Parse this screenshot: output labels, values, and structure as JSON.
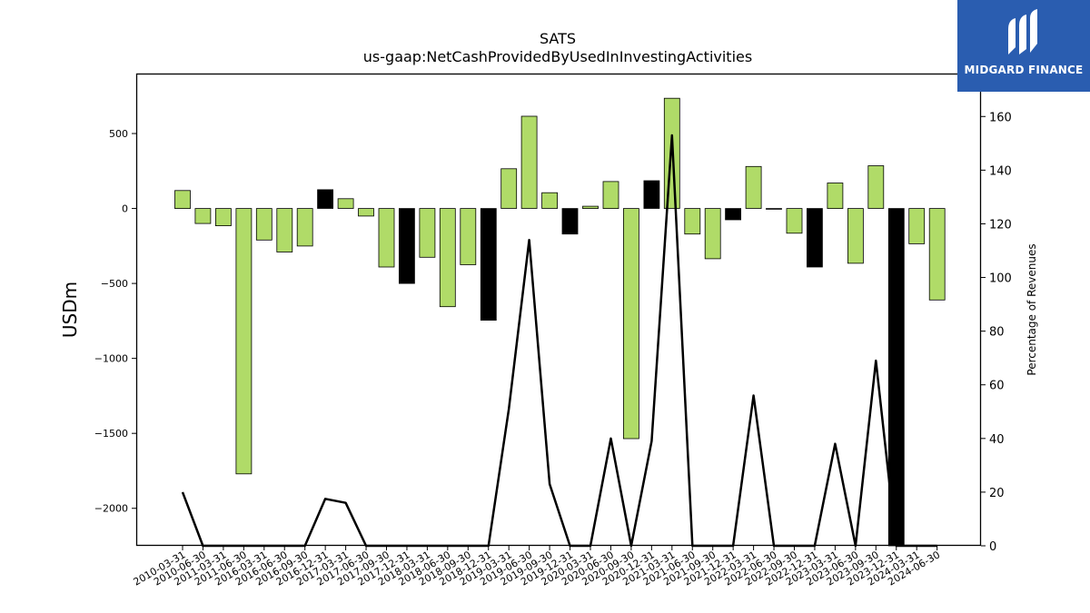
{
  "chart_data": {
    "type": "bar",
    "title": "SATS",
    "subtitle": "us-gaap:NetCashProvidedByUsedInInvestingActivities",
    "ylabel": "USDm",
    "y2label": "Percentage of Revenues",
    "ylim": [
      -2250,
      900
    ],
    "y2lim": [
      0,
      176
    ],
    "yticks": [
      500,
      0,
      -500,
      -1000,
      -1500,
      -2000
    ],
    "ytick_labels": [
      "500",
      "0",
      "−500",
      "−1000",
      "−1500",
      "−2000"
    ],
    "y2ticks": [
      0,
      20,
      40,
      60,
      80,
      100,
      120,
      140,
      160
    ],
    "grid": false,
    "categories": [
      "2010-03-31",
      "2010-06-30",
      "2011-03-31",
      "2011-06-30",
      "2016-03-31",
      "2016-06-30",
      "2016-09-30",
      "2016-12-31",
      "2017-03-31",
      "2017-06-30",
      "2017-09-30",
      "2017-12-31",
      "2018-03-31",
      "2018-06-30",
      "2018-09-30",
      "2018-12-31",
      "2019-03-31",
      "2019-06-30",
      "2019-09-30",
      "2019-12-31",
      "2020-03-31",
      "2020-06-30",
      "2020-09-30",
      "2020-12-31",
      "2021-03-31",
      "2021-06-30",
      "2021-09-30",
      "2021-12-31",
      "2022-03-31",
      "2022-06-30",
      "2022-09-30",
      "2022-12-31",
      "2023-03-31",
      "2023-06-30",
      "2023-09-30",
      "2023-12-31",
      "2024-03-31",
      "2024-06-30"
    ],
    "series": [
      {
        "kind": "bar",
        "values": [
          120,
          -100,
          -115,
          -1770,
          -210,
          -290,
          -250,
          125,
          65,
          -50,
          -390,
          -500,
          -325,
          -655,
          -375,
          -745,
          265,
          615,
          105,
          -170,
          15,
          180,
          -1535,
          185,
          735,
          -170,
          -335,
          -75,
          280,
          -5,
          -165,
          -390,
          170,
          -365,
          285,
          -2250,
          -235,
          -610
        ],
        "colors": [
          "#b0db68",
          "#b0db68",
          "#b0db68",
          "#b0db68",
          "#b0db68",
          "#b0db68",
          "#b0db68",
          "#000000",
          "#b0db68",
          "#b0db68",
          "#b0db68",
          "#000000",
          "#b0db68",
          "#b0db68",
          "#b0db68",
          "#000000",
          "#b0db68",
          "#b0db68",
          "#b0db68",
          "#000000",
          "#b0db68",
          "#b0db68",
          "#b0db68",
          "#000000",
          "#b0db68",
          "#b0db68",
          "#b0db68",
          "#000000",
          "#b0db68",
          "#b0db68",
          "#b0db68",
          "#000000",
          "#b0db68",
          "#b0db68",
          "#b0db68",
          "#000000",
          "#b0db68",
          "#b0db68"
        ]
      },
      {
        "kind": "line",
        "axis": "right",
        "color": "#000000",
        "values": [
          20,
          0,
          0,
          0,
          0,
          0,
          0,
          17.5,
          16,
          0,
          0,
          0,
          0,
          0,
          0,
          0,
          51,
          114,
          23,
          0,
          0,
          40,
          0,
          39,
          153,
          0,
          0,
          0,
          56,
          0,
          0,
          0,
          38,
          0,
          69,
          0,
          0,
          0
        ]
      }
    ]
  },
  "logo": {
    "text": "MIDGARD FINANCE",
    "background": "#2a5db0"
  }
}
